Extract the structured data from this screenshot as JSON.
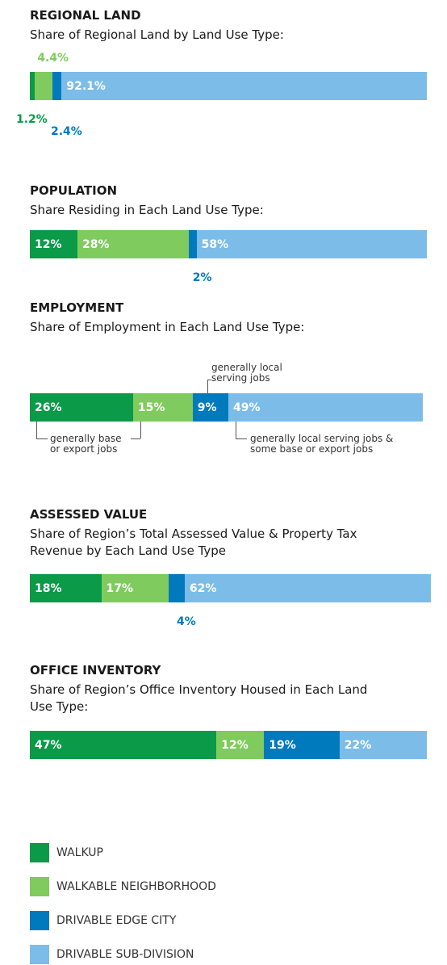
{
  "chart_data": [
    {
      "type": "stacked_bar",
      "title": "REGIONAL LAND",
      "subtitle": "Share of Regional Land by Land Use Type:",
      "values": [
        1.2,
        4.4,
        2.4,
        92.1
      ],
      "value_labels": [
        "1.2%",
        "4.4%",
        "2.4%",
        "92.1%"
      ],
      "xlim": [
        0,
        100
      ]
    },
    {
      "type": "stacked_bar",
      "title": "POPULATION",
      "subtitle": "Share Residing in Each Land Use Type:",
      "values": [
        12,
        28,
        2,
        58
      ],
      "value_labels": [
        "12%",
        "28%",
        "2%",
        "58%"
      ],
      "xlim": [
        0,
        100
      ]
    },
    {
      "type": "stacked_bar",
      "title": "EMPLOYMENT",
      "subtitle": "Share of Employment in Each Land Use Type:",
      "values": [
        26,
        15,
        9,
        49
      ],
      "value_labels": [
        "26%",
        "15%",
        "9%",
        "49%"
      ],
      "xlim": [
        0,
        100
      ],
      "annotations": [
        "generally local serving jobs",
        "generally base or export jobs",
        "generally local serving jobs & some base or export jobs"
      ]
    },
    {
      "type": "stacked_bar",
      "title": "ASSESSED VALUE",
      "subtitle": "Share of Region’s Total Assessed Value & Property Tax Revenue by Each Land Use Type",
      "values": [
        18,
        17,
        4,
        62
      ],
      "value_labels": [
        "18%",
        "17%",
        "4%",
        "62%"
      ],
      "xlim": [
        0,
        100
      ]
    },
    {
      "type": "stacked_bar",
      "title": "OFFICE INVENTORY",
      "subtitle": "Share of Region’s Office Inventory Housed in Each Land Use Type:",
      "values": [
        47,
        12,
        19,
        22
      ],
      "value_labels": [
        "47%",
        "12%",
        "19%",
        "22%"
      ],
      "xlim": [
        0,
        100
      ]
    }
  ],
  "legend": [
    {
      "name": "WALKUP",
      "color": "#0a9a48"
    },
    {
      "name": "WALKABLE NEIGHBORHOOD",
      "color": "#7fcb5e"
    },
    {
      "name": "DRIVABLE EDGE CITY",
      "color": "#0079bd"
    },
    {
      "name": "DRIVABLE SUB-DIVISION",
      "color": "#7bbde8"
    }
  ]
}
